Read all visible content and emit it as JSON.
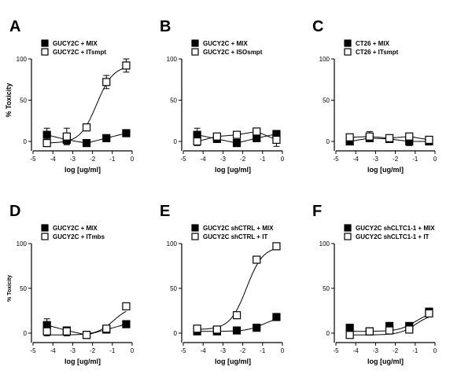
{
  "chart_data": [
    {
      "panel": "A",
      "type": "scatter",
      "ylabel": "% Toxicity",
      "xlabel": "log [ug/ml]",
      "xlim": [
        -5,
        0
      ],
      "ylim": [
        0,
        100
      ],
      "xticks": [
        -5,
        -4,
        -3,
        -2,
        -1,
        0
      ],
      "yticks": [
        0,
        50,
        100
      ],
      "legend": "top-left",
      "series": [
        {
          "name": "GUCY2C + MIX",
          "marker": "filled-square",
          "fit": "flat",
          "x": [
            -4.3,
            -3.3,
            -2.3,
            -1.3,
            -0.3
          ],
          "y": [
            8,
            2,
            -2,
            4,
            10
          ],
          "err": [
            8,
            5,
            2,
            2,
            2
          ]
        },
        {
          "name": "GUCY2C + ITsmpt",
          "marker": "open-square",
          "fit": "sigmoid",
          "x": [
            -4.3,
            -3.3,
            -2.3,
            -1.3,
            -0.3
          ],
          "y": [
            -2,
            6,
            17,
            72,
            92
          ],
          "err": [
            4,
            10,
            4,
            8,
            8
          ]
        }
      ]
    },
    {
      "panel": "B",
      "type": "scatter",
      "ylabel": "",
      "xlabel": "log [ug/ml]",
      "xlim": [
        -5,
        0
      ],
      "ylim": [
        0,
        100
      ],
      "xticks": [
        -5,
        -4,
        -3,
        -2,
        -1,
        0
      ],
      "yticks": [
        0,
        50,
        100
      ],
      "legend": "top-left",
      "series": [
        {
          "name": "GUCY2C + MIX",
          "marker": "filled-square",
          "fit": "flat",
          "x": [
            -4.3,
            -3.3,
            -2.3,
            -1.3,
            -0.3
          ],
          "y": [
            8,
            3,
            -2,
            4,
            9
          ],
          "err": [
            8,
            4,
            2,
            2,
            2
          ]
        },
        {
          "name": "GUCY2C + ISOsmpt",
          "marker": "open-square",
          "fit": "flat",
          "x": [
            -4.3,
            -3.3,
            -2.3,
            -1.3,
            -0.3
          ],
          "y": [
            0,
            6,
            8,
            12,
            2
          ],
          "err": [
            5,
            4,
            3,
            3,
            8
          ]
        }
      ]
    },
    {
      "panel": "C",
      "type": "scatter",
      "ylabel": "",
      "xlabel": "log [ug/ml]",
      "xlim": [
        -5,
        0
      ],
      "ylim": [
        0,
        100
      ],
      "xticks": [
        -5,
        -4,
        -3,
        -2,
        -1,
        0
      ],
      "yticks": [
        0,
        50,
        100
      ],
      "legend": "top-left",
      "series": [
        {
          "name": "CT26 + MIX",
          "marker": "filled-square",
          "fit": "flat",
          "x": [
            -4.3,
            -3.3,
            -2.3,
            -1.3,
            -0.3
          ],
          "y": [
            0,
            4,
            3,
            0,
            0
          ],
          "err": [
            3,
            4,
            3,
            5,
            3
          ]
        },
        {
          "name": "CT26 + ITsmpt",
          "marker": "open-square",
          "fit": "flat",
          "x": [
            -4.3,
            -3.3,
            -2.3,
            -1.3,
            -0.3
          ],
          "y": [
            5,
            6,
            4,
            6,
            2
          ],
          "err": [
            4,
            6,
            3,
            4,
            3
          ]
        }
      ]
    },
    {
      "panel": "D",
      "type": "scatter",
      "ylabel": "% Toxicity",
      "xlabel": "log [ug/ml]",
      "xlim": [
        -5,
        0
      ],
      "ylim": [
        0,
        100
      ],
      "xticks": [
        -5,
        -4,
        -3,
        -2,
        -1,
        0
      ],
      "yticks": [
        0,
        50,
        100
      ],
      "legend": "top-left",
      "series": [
        {
          "name": "GUCY2C + MIX",
          "marker": "filled-square",
          "fit": "flat",
          "x": [
            -4.3,
            -3.3,
            -2.3,
            -1.3,
            -0.3
          ],
          "y": [
            9,
            3,
            -2,
            4,
            10
          ],
          "err": [
            7,
            4,
            2,
            2,
            2
          ]
        },
        {
          "name": "GUCY2C + ITmbs",
          "marker": "open-square",
          "fit": "sigmoid",
          "x": [
            -4.3,
            -3.3,
            -2.3,
            -1.3,
            -0.3
          ],
          "y": [
            2,
            2,
            -2,
            5,
            30
          ],
          "err": [
            5,
            5,
            3,
            3,
            3
          ]
        }
      ]
    },
    {
      "panel": "E",
      "type": "scatter",
      "ylabel": "",
      "xlabel": "log [ug/ml]",
      "xlim": [
        -5,
        0
      ],
      "ylim": [
        0,
        100
      ],
      "xticks": [
        -5,
        -4,
        -3,
        -2,
        -1,
        0
      ],
      "yticks": [
        0,
        50,
        100
      ],
      "legend": "top-left",
      "series": [
        {
          "name": "GUCY2C shCTRL + MIX",
          "marker": "filled-square",
          "fit": "sigmoid",
          "x": [
            -4.3,
            -3.3,
            -2.3,
            -1.3,
            -0.3
          ],
          "y": [
            2,
            2,
            3,
            6,
            18
          ],
          "err": [
            1,
            1,
            1,
            1,
            2
          ]
        },
        {
          "name": "GUCY2C shCTRL + IT",
          "marker": "open-square",
          "fit": "sigmoid",
          "x": [
            -4.3,
            -3.3,
            -2.3,
            -1.3,
            -0.3
          ],
          "y": [
            5,
            4,
            20,
            82,
            97
          ],
          "err": [
            1,
            1,
            2,
            3,
            2
          ]
        }
      ]
    },
    {
      "panel": "F",
      "type": "scatter",
      "ylabel": "",
      "xlabel": "log [ug/ml]",
      "xlim": [
        -5,
        0
      ],
      "ylim": [
        0,
        100
      ],
      "xticks": [
        -5,
        -4,
        -3,
        -2,
        -1,
        0
      ],
      "yticks": [
        0,
        50,
        100
      ],
      "legend": "top-left",
      "series": [
        {
          "name": "GUCY2C shCLTC1-1 + MIX",
          "marker": "filled-square",
          "fit": "sigmoid",
          "x": [
            -4.3,
            -3.3,
            -2.3,
            -1.3,
            -0.3
          ],
          "y": [
            6,
            2,
            8,
            8,
            24
          ],
          "err": [
            2,
            2,
            3,
            2,
            3
          ]
        },
        {
          "name": "GUCY2C shCLTC1-1 + IT",
          "marker": "open-square",
          "fit": "sigmoid",
          "x": [
            -4.3,
            -3.3,
            -2.3,
            -1.3,
            -0.3
          ],
          "y": [
            -2,
            2,
            3,
            4,
            22
          ],
          "err": [
            2,
            2,
            2,
            2,
            3
          ]
        }
      ]
    }
  ]
}
